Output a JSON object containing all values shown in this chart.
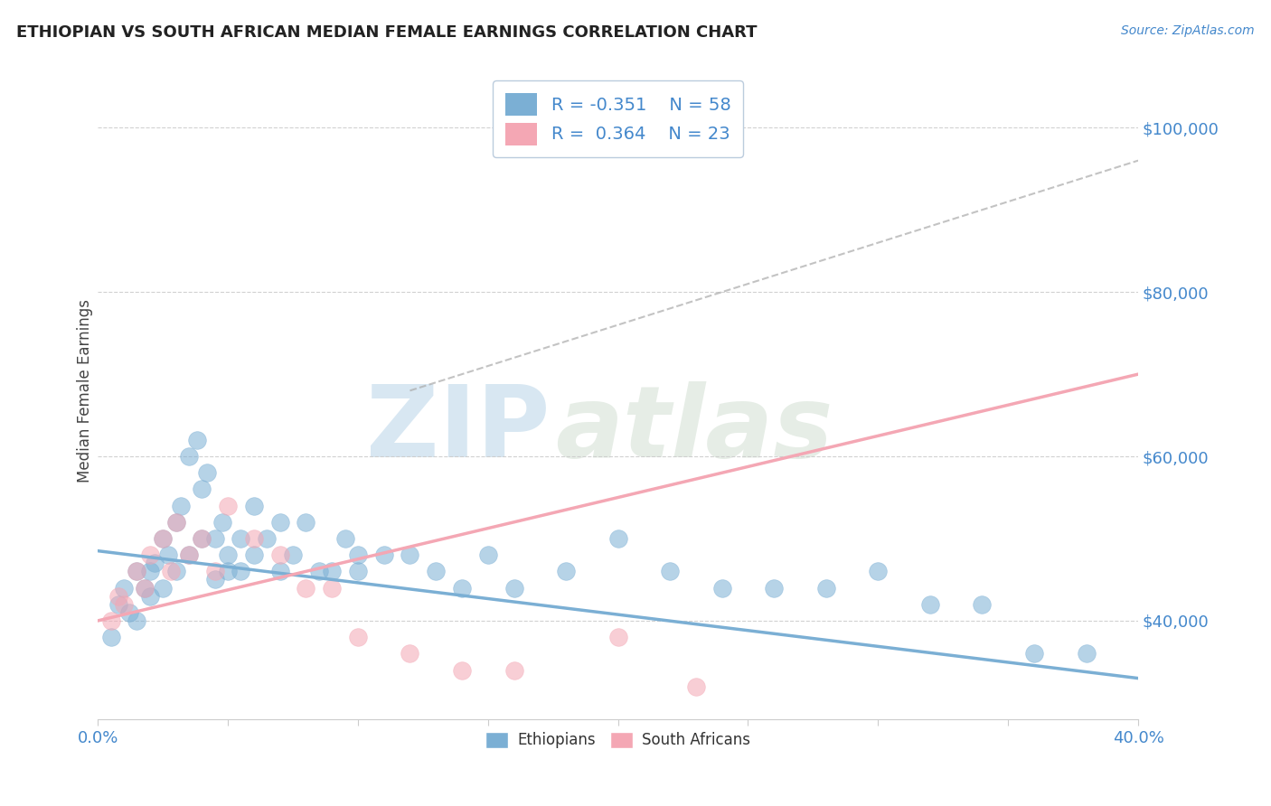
{
  "title": "ETHIOPIAN VS SOUTH AFRICAN MEDIAN FEMALE EARNINGS CORRELATION CHART",
  "source": "Source: ZipAtlas.com",
  "ylabel": "Median Female Earnings",
  "xlim": [
    0.0,
    0.4
  ],
  "ylim": [
    28000,
    108000
  ],
  "xticks": [
    0.0,
    0.05,
    0.1,
    0.15,
    0.2,
    0.25,
    0.3,
    0.35,
    0.4
  ],
  "ytick_labels": [
    "$40,000",
    "$60,000",
    "$80,000",
    "$100,000"
  ],
  "ytick_values": [
    40000,
    60000,
    80000,
    100000
  ],
  "blue_color": "#7BAFD4",
  "pink_color": "#F4A7B4",
  "blue_R": -0.351,
  "blue_N": 58,
  "pink_R": 0.364,
  "pink_N": 23,
  "blue_line_x": [
    0.0,
    0.4
  ],
  "blue_line_y": [
    48500,
    33000
  ],
  "pink_line_x": [
    0.0,
    0.4
  ],
  "pink_line_y": [
    40000,
    70000
  ],
  "gray_line_x": [
    0.12,
    0.4
  ],
  "gray_line_y": [
    68000,
    96000
  ],
  "blue_points_x": [
    0.005,
    0.008,
    0.01,
    0.012,
    0.015,
    0.015,
    0.018,
    0.02,
    0.02,
    0.022,
    0.025,
    0.025,
    0.027,
    0.03,
    0.03,
    0.032,
    0.035,
    0.035,
    0.038,
    0.04,
    0.04,
    0.042,
    0.045,
    0.045,
    0.048,
    0.05,
    0.05,
    0.055,
    0.055,
    0.06,
    0.06,
    0.065,
    0.07,
    0.07,
    0.075,
    0.08,
    0.085,
    0.09,
    0.095,
    0.1,
    0.1,
    0.11,
    0.12,
    0.13,
    0.14,
    0.15,
    0.16,
    0.18,
    0.2,
    0.22,
    0.24,
    0.26,
    0.28,
    0.3,
    0.32,
    0.34,
    0.36,
    0.38
  ],
  "blue_points_y": [
    38000,
    42000,
    44000,
    41000,
    46000,
    40000,
    44000,
    46000,
    43000,
    47000,
    50000,
    44000,
    48000,
    52000,
    46000,
    54000,
    60000,
    48000,
    62000,
    56000,
    50000,
    58000,
    50000,
    45000,
    52000,
    46000,
    48000,
    50000,
    46000,
    54000,
    48000,
    50000,
    46000,
    52000,
    48000,
    52000,
    46000,
    46000,
    50000,
    46000,
    48000,
    48000,
    48000,
    46000,
    44000,
    48000,
    44000,
    46000,
    50000,
    46000,
    44000,
    44000,
    44000,
    46000,
    42000,
    42000,
    36000,
    36000
  ],
  "pink_points_x": [
    0.005,
    0.008,
    0.01,
    0.015,
    0.018,
    0.02,
    0.025,
    0.028,
    0.03,
    0.035,
    0.04,
    0.045,
    0.05,
    0.06,
    0.07,
    0.08,
    0.09,
    0.1,
    0.12,
    0.14,
    0.16,
    0.2,
    0.23
  ],
  "pink_points_y": [
    40000,
    43000,
    42000,
    46000,
    44000,
    48000,
    50000,
    46000,
    52000,
    48000,
    50000,
    46000,
    54000,
    50000,
    48000,
    44000,
    44000,
    38000,
    36000,
    34000,
    34000,
    38000,
    32000
  ],
  "watermark_zip": "ZIP",
  "watermark_atlas": "atlas",
  "watermark_zip_color": "#B8D4E8",
  "watermark_atlas_color": "#C8D8C8",
  "background_color": "#FFFFFF"
}
